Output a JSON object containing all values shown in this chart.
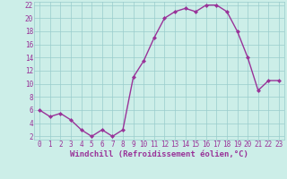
{
  "x": [
    0,
    1,
    2,
    3,
    4,
    5,
    6,
    7,
    8,
    9,
    10,
    11,
    12,
    13,
    14,
    15,
    16,
    17,
    18,
    19,
    20,
    21,
    22,
    23
  ],
  "y": [
    6,
    5,
    5.5,
    4.5,
    3,
    2,
    3,
    2,
    3,
    11,
    13.5,
    17,
    20,
    21,
    21.5,
    21,
    22,
    22,
    21,
    18,
    14,
    9,
    10.5,
    10.5
  ],
  "line_color": "#993399",
  "marker": "D",
  "marker_size": 2.0,
  "bg_color": "#cceee8",
  "grid_color": "#99cccc",
  "xlabel": "Windchill (Refroidissement éolien,°C)",
  "xlabel_color": "#993399",
  "ylim_min": 1.5,
  "ylim_max": 22.5,
  "xlim_min": -0.5,
  "xlim_max": 23.5,
  "yticks": [
    2,
    4,
    6,
    8,
    10,
    12,
    14,
    16,
    18,
    20,
    22
  ],
  "xticks": [
    0,
    1,
    2,
    3,
    4,
    5,
    6,
    7,
    8,
    9,
    10,
    11,
    12,
    13,
    14,
    15,
    16,
    17,
    18,
    19,
    20,
    21,
    22,
    23
  ],
  "tick_color": "#993399",
  "tick_fontsize": 5.5,
  "xlabel_fontsize": 6.5,
  "linewidth": 1.0
}
